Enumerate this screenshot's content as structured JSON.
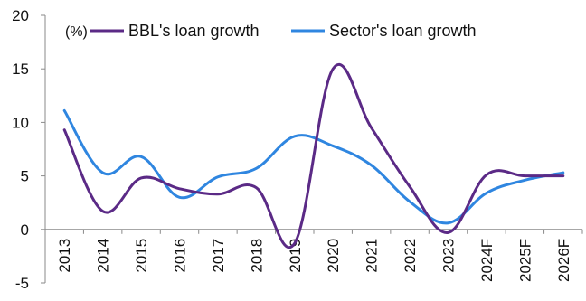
{
  "chart_data": {
    "type": "line",
    "title": "",
    "xlabel": "",
    "ylabel": "",
    "unit_label": "(%)",
    "categories": [
      "2013",
      "2014",
      "2015",
      "2016",
      "2017",
      "2018",
      "2019",
      "2020",
      "2021",
      "2022",
      "2023",
      "2024F",
      "2025F",
      "2026F"
    ],
    "series": [
      {
        "name": "BBL's loan growth",
        "color": "#5b2a86",
        "values": [
          9.3,
          1.7,
          4.8,
          3.8,
          3.3,
          3.9,
          -1.3,
          15.0,
          9.5,
          4.0,
          -0.3,
          5.1,
          5.0,
          5.0
        ]
      },
      {
        "name": "Sector's loan growth",
        "color": "#2f86e0",
        "values": [
          11.1,
          5.3,
          6.8,
          3.0,
          4.9,
          5.7,
          8.7,
          7.8,
          6.0,
          2.6,
          0.6,
          3.4,
          4.6,
          5.3
        ]
      }
    ],
    "ylim": [
      -5,
      20
    ],
    "yticks": [
      -5,
      0,
      5,
      10,
      15,
      20
    ],
    "grid": false,
    "legend_position": "top",
    "smooth": true
  }
}
